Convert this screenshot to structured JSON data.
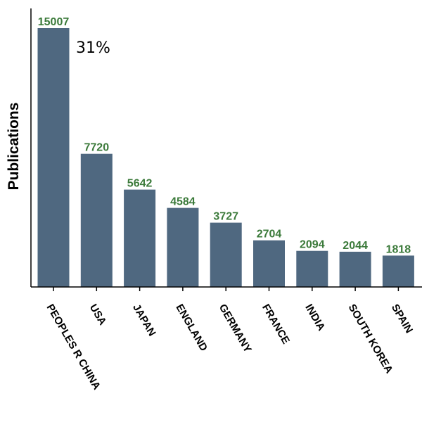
{
  "chart_data": {
    "type": "bar",
    "title": "",
    "xlabel": "",
    "ylabel": "Publications",
    "categories": [
      "PEOPLES R CHINA",
      "USA",
      "JAPAN",
      "ENGLAND",
      "GERMANY",
      "FRANCE",
      "INDIA",
      "SOUTH KOREA",
      "SPAIN"
    ],
    "values": [
      15007,
      7720,
      5642,
      4584,
      3727,
      2704,
      2094,
      2044,
      1818
    ],
    "value_labels": [
      "15007",
      "7720",
      "5642",
      "4584",
      "3727",
      "2704",
      "2094",
      "2044",
      "1818"
    ],
    "ylim": [
      0,
      15007
    ],
    "annotation": "31%",
    "grid": false,
    "legend": "none",
    "colors": {
      "bar": "#4f6880",
      "value_label": "#3b7a3a",
      "axis": "#000000"
    }
  }
}
